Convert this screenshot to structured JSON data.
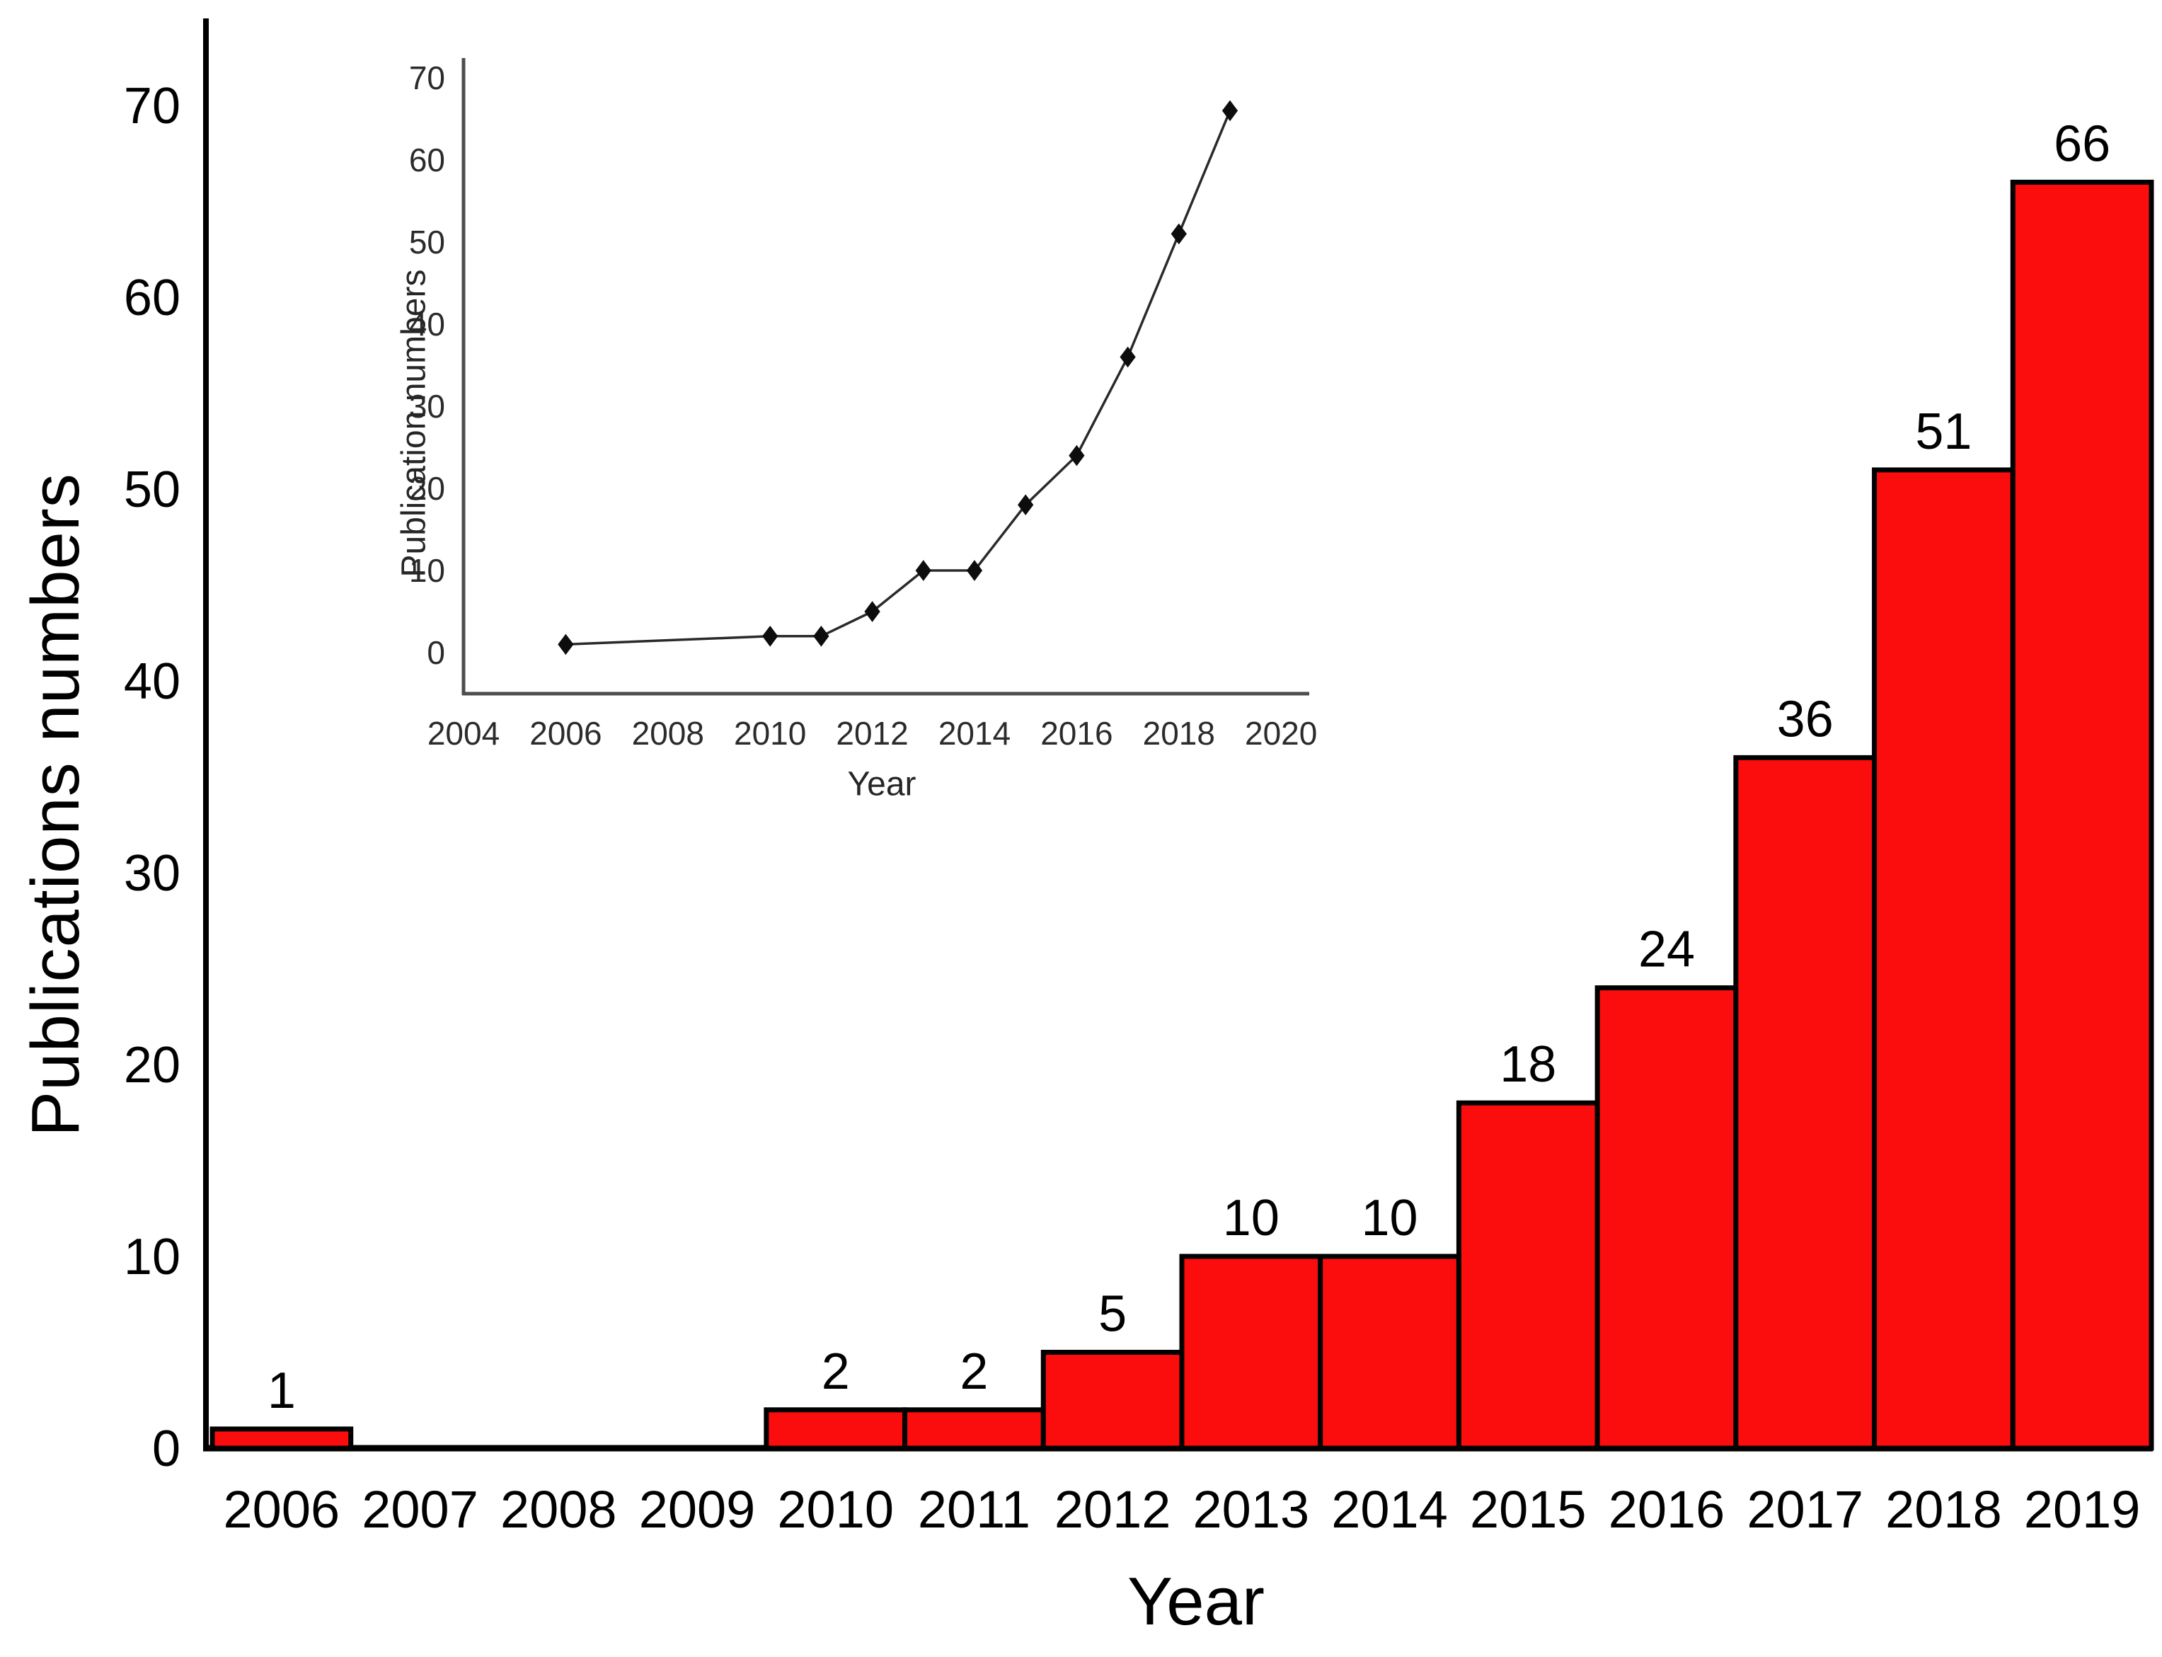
{
  "figure": {
    "background": "#ffffff",
    "main_axis_color": "#000000",
    "inset_axis_color": "#4d4d4d",
    "text_color": "#000000"
  },
  "chart_data": [
    {
      "id": "main_bar_chart",
      "type": "bar",
      "title": "",
      "xlabel": "Year",
      "ylabel": "Publications numbers",
      "categories": [
        "2006",
        "2007",
        "2008",
        "2009",
        "2010",
        "2011",
        "2012",
        "2013",
        "2014",
        "2015",
        "2016",
        "2017",
        "2018",
        "2019"
      ],
      "values": [
        1,
        0,
        0,
        0,
        2,
        2,
        5,
        10,
        10,
        18,
        24,
        36,
        51,
        66
      ],
      "bar_labels": [
        "1",
        "",
        "",
        "",
        "2",
        "2",
        "5",
        "10",
        "10",
        "18",
        "24",
        "36",
        "51",
        "66"
      ],
      "ylim": [
        0,
        70
      ],
      "yticks": [
        0,
        10,
        20,
        30,
        40,
        50,
        60,
        70
      ],
      "grid": false,
      "legend": "none",
      "bar_color": "#fc0d0d",
      "bar_border_color": "#000000"
    },
    {
      "id": "inset_line_chart",
      "type": "line",
      "title": "",
      "xlabel": "Year",
      "ylabel": "Publication numbers",
      "x": [
        2006,
        2010,
        2011,
        2012,
        2013,
        2014,
        2015,
        2016,
        2017,
        2018,
        2019
      ],
      "y": [
        1,
        2,
        2,
        5,
        10,
        10,
        18,
        24,
        36,
        51,
        66
      ],
      "xlim": [
        2004,
        2021
      ],
      "xticks": [
        2004,
        2006,
        2008,
        2010,
        2012,
        2014,
        2016,
        2018,
        2020
      ],
      "ylim": [
        0,
        70
      ],
      "yticks": [
        0,
        10,
        20,
        30,
        40,
        50,
        60,
        70
      ],
      "grid": false,
      "legend": "none",
      "marker": "diamond",
      "marker_color": "#0d0d0d",
      "line_color": "#2a2a2a"
    }
  ]
}
